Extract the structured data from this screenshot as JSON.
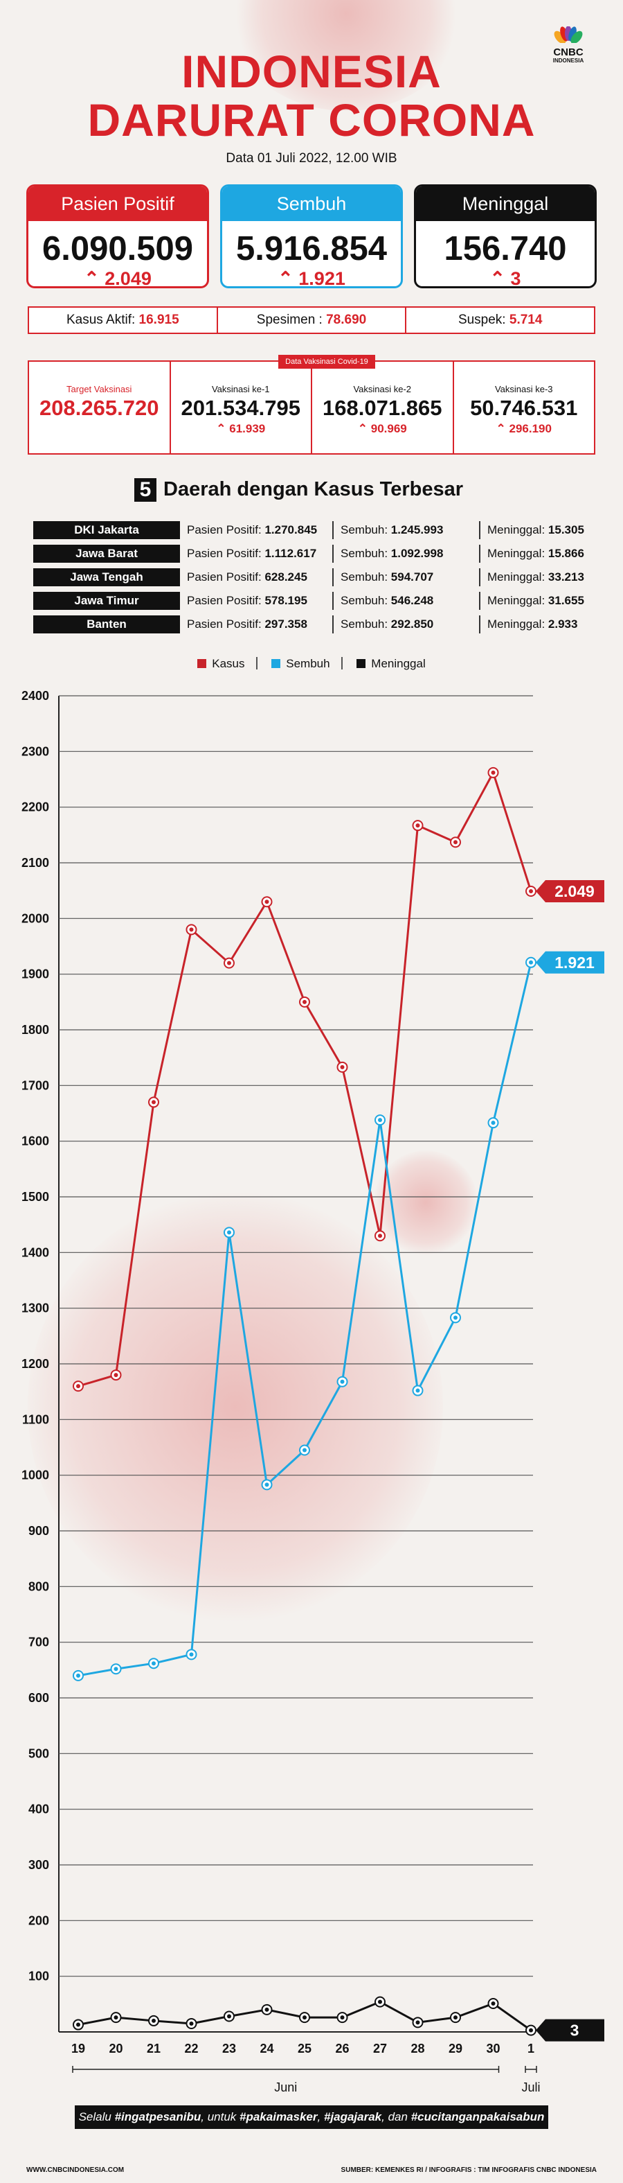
{
  "header": {
    "title_line1": "INDONESIA",
    "title_line2": "DARURAT CORONA",
    "date": "Data 01 Juli 2022, 12.00 WIB",
    "logo_line1": "CNBC",
    "logo_line2": "INDONESIA"
  },
  "cards": [
    {
      "label": "Pasien Positif",
      "value": "6.090.509",
      "delta": "2.049",
      "color": "#d8232a"
    },
    {
      "label": "Sembuh",
      "value": "5.916.854",
      "delta": "1.921",
      "color": "#1ea7e1"
    },
    {
      "label": "Meninggal",
      "value": "156.740",
      "delta": "3",
      "color": "#111111"
    }
  ],
  "summary": [
    {
      "label": "Kasus Aktif:",
      "value": "16.915"
    },
    {
      "label": "Spesimen :",
      "value": "78.690"
    },
    {
      "label": "Suspek:",
      "value": "5.714"
    }
  ],
  "vaccination": {
    "tag": "Data Vaksinasi Covid-19",
    "target_label": "Target Vaksinasi",
    "target_value": "208.265.720",
    "doses": [
      {
        "label": "Vaksinasi ke-1",
        "value": "201.534.795",
        "delta": "61.939"
      },
      {
        "label": "Vaksinasi ke-2",
        "value": "168.071.865",
        "delta": "90.969"
      },
      {
        "label": "Vaksinasi ke-3",
        "value": "50.746.531",
        "delta": "296.190"
      }
    ]
  },
  "regions": {
    "number": "5",
    "title": "Daerah dengan Kasus Terbesar",
    "rows": [
      {
        "name": "DKI Jakarta",
        "positif": "1.270.845",
        "sembuh": "1.245.993",
        "meninggal": "15.305"
      },
      {
        "name": "Jawa Barat",
        "positif": "1.112.617",
        "sembuh": "1.092.998",
        "meninggal": "15.866"
      },
      {
        "name": "Jawa Tengah",
        "positif": "628.245",
        "sembuh": "594.707",
        "meninggal": "33.213"
      },
      {
        "name": "Jawa Timur",
        "positif": "578.195",
        "sembuh": "546.248",
        "meninggal": "31.655"
      },
      {
        "name": "Banten",
        "positif": "297.358",
        "sembuh": "292.850",
        "meninggal": "2.933"
      }
    ],
    "labels": {
      "positif": "Pasien Positif:",
      "sembuh": "Sembuh:",
      "meninggal": "Meninggal:"
    }
  },
  "chart_data": {
    "type": "line",
    "categories": [
      "19",
      "20",
      "21",
      "22",
      "23",
      "24",
      "25",
      "26",
      "27",
      "28",
      "29",
      "30",
      "1"
    ],
    "month_labels": [
      {
        "label": "Juni",
        "from": 0,
        "to": 11
      },
      {
        "label": "Juli",
        "from": 12,
        "to": 12
      }
    ],
    "series": [
      {
        "name": "Kasus",
        "color": "#c8232a",
        "values": [
          1160,
          1180,
          1670,
          1980,
          1920,
          2030,
          1850,
          1733,
          1430,
          2167,
          2137,
          2262,
          2049
        ],
        "end_label": "2.049"
      },
      {
        "name": "Sembuh",
        "color": "#1ea7e1",
        "values": [
          640,
          652,
          662,
          678,
          1436,
          983,
          1045,
          1168,
          1638,
          1152,
          1283,
          1633,
          1921
        ],
        "end_label": "1.921"
      },
      {
        "name": "Meninggal",
        "color": "#111111",
        "values": [
          13,
          26,
          20,
          15,
          28,
          40,
          26,
          26,
          54,
          17,
          26,
          51,
          3
        ],
        "end_label": "3"
      }
    ],
    "yticks": [
      100,
      200,
      300,
      400,
      500,
      600,
      700,
      800,
      900,
      1000,
      1100,
      1200,
      1300,
      1400,
      1500,
      1600,
      1700,
      1800,
      1900,
      2000,
      2100,
      2200,
      2300,
      2400
    ],
    "ylim": [
      0,
      2400
    ],
    "grid": true,
    "legend_position": "top-center"
  },
  "motto_parts": [
    "Selalu ",
    "#ingatpesanibu",
    ", untuk ",
    "#pakaimasker",
    ", ",
    "#jagajarak",
    ", dan ",
    "#cucitanganpakaisabun"
  ],
  "footer": {
    "left": "WWW.CNBCINDONESIA.COM",
    "right": "SUMBER: KEMENKES RI / INFOGRAFIS : TIM INFOGRAFIS CNBC INDONESIA"
  }
}
